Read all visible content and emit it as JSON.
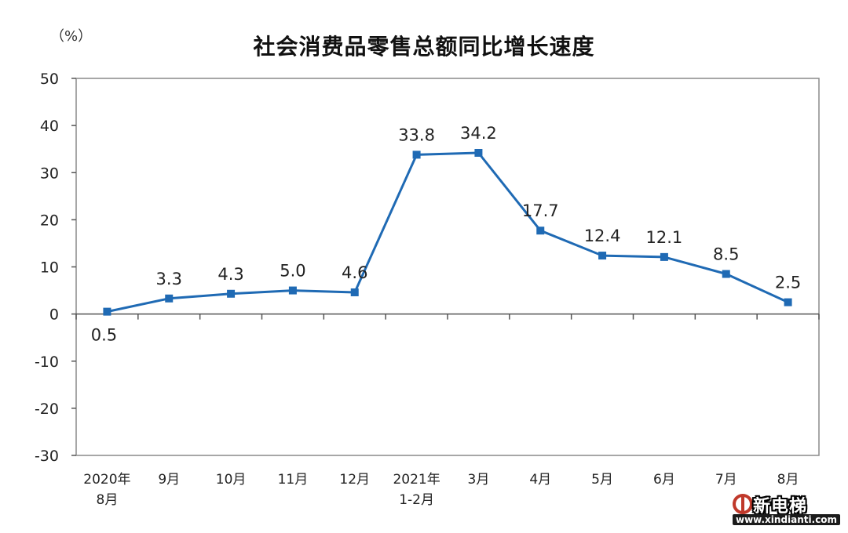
{
  "unit_label": "（%）",
  "watermark": {
    "brand": "新电梯",
    "url": "www.xindianti.com"
  },
  "colors": {
    "series": "#1f6ab4",
    "axis": "#555555",
    "gridbox": "#8a8a8a",
    "text": "#222222"
  },
  "chart_data": {
    "type": "line",
    "title": "社会消费品零售总额同比增长速度",
    "ylabel": "",
    "xlabel": "",
    "ylim": [
      -30,
      50
    ],
    "yticks": [
      -30,
      -20,
      -10,
      0,
      10,
      20,
      30,
      40,
      50
    ],
    "grid": false,
    "legend": "none",
    "categories": [
      [
        "2020年",
        "8月"
      ],
      [
        "9月"
      ],
      [
        "10月"
      ],
      [
        "11月"
      ],
      [
        "12月"
      ],
      [
        "2021年",
        "1-2月"
      ],
      [
        "3月"
      ],
      [
        "4月"
      ],
      [
        "5月"
      ],
      [
        "6月"
      ],
      [
        "7月"
      ],
      [
        "8月"
      ]
    ],
    "values": [
      0.5,
      3.3,
      4.3,
      5.0,
      4.6,
      33.8,
      34.2,
      17.7,
      12.4,
      12.1,
      8.5,
      2.5
    ],
    "data_labels": [
      "0.5",
      "3.3",
      "4.3",
      "5.0",
      "4.6",
      "33.8",
      "34.2",
      "17.7",
      "12.4",
      "12.1",
      "8.5",
      "2.5"
    ],
    "label_below": [
      true,
      false,
      false,
      false,
      false,
      false,
      false,
      false,
      false,
      false,
      false,
      false
    ]
  }
}
